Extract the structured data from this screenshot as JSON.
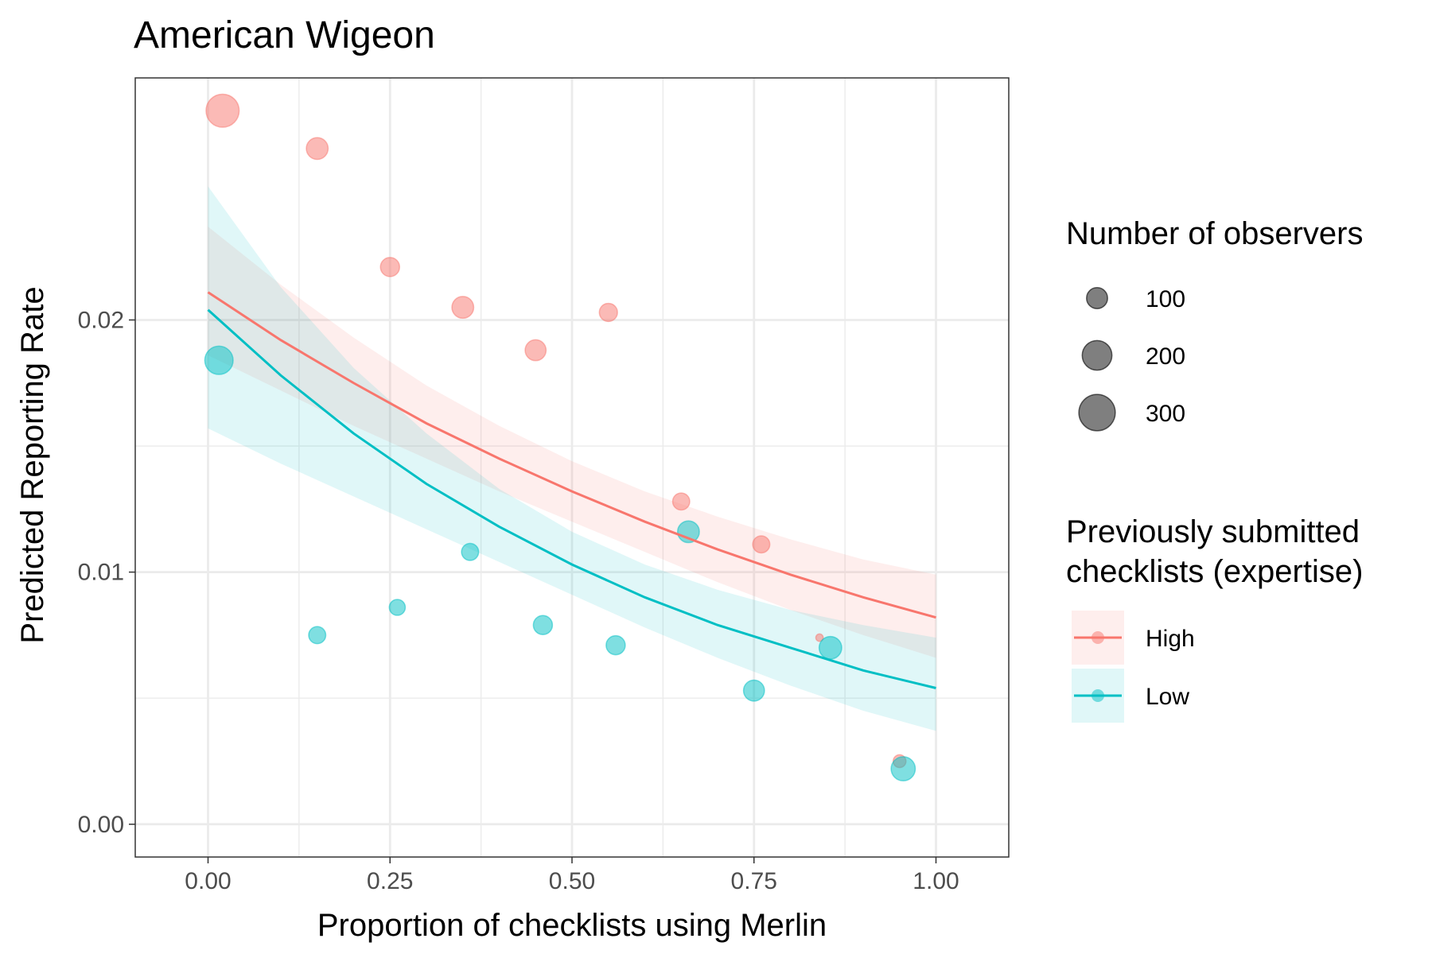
{
  "chart_data": {
    "type": "scatter",
    "title": "American Wigeon",
    "xlabel": "Proportion of checklists using Merlin",
    "ylabel": "Predicted Reporting Rate",
    "xlim": [
      -0.1,
      1.1
    ],
    "ylim": [
      -0.0013,
      0.0296
    ],
    "x_ticks": [
      0.0,
      0.25,
      0.5,
      0.75,
      1.0
    ],
    "x_tick_labels": [
      "0.00",
      "0.25",
      "0.50",
      "0.75",
      "1.00"
    ],
    "y_ticks": [
      0.0,
      0.01,
      0.02
    ],
    "y_tick_labels": [
      "0.00",
      "0.01",
      "0.02"
    ],
    "grid": true,
    "legend_position": "right",
    "size_legend": {
      "title": "Number of observers",
      "items": [
        {
          "label": "100",
          "value": 100
        },
        {
          "label": "200",
          "value": 200
        },
        {
          "label": "300",
          "value": 300
        }
      ]
    },
    "color_legend": {
      "title_lines": [
        "Previously submitted",
        "checklists (expertise)"
      ]
    },
    "series": [
      {
        "name": "High",
        "color": "#F8766D",
        "points": [
          {
            "x": 0.02,
            "y": 0.0283,
            "n": 300
          },
          {
            "x": 0.15,
            "y": 0.0268,
            "n": 130
          },
          {
            "x": 0.25,
            "y": 0.0221,
            "n": 100
          },
          {
            "x": 0.35,
            "y": 0.0205,
            "n": 130
          },
          {
            "x": 0.45,
            "y": 0.0188,
            "n": 120
          },
          {
            "x": 0.55,
            "y": 0.0203,
            "n": 90
          },
          {
            "x": 0.65,
            "y": 0.0128,
            "n": 80
          },
          {
            "x": 0.76,
            "y": 0.0111,
            "n": 80
          },
          {
            "x": 0.84,
            "y": 0.0074,
            "n": 15
          },
          {
            "x": 0.95,
            "y": 0.0025,
            "n": 45
          }
        ],
        "fit": {
          "x": [
            0.0,
            0.1,
            0.2,
            0.3,
            0.4,
            0.5,
            0.6,
            0.7,
            0.8,
            0.9,
            1.0
          ],
          "y": [
            0.0211,
            0.0192,
            0.0175,
            0.0159,
            0.0145,
            0.0132,
            0.012,
            0.0109,
            0.0099,
            0.009,
            0.0082
          ],
          "lower": [
            0.0186,
            0.0172,
            0.0158,
            0.0145,
            0.0132,
            0.012,
            0.0108,
            0.0096,
            0.0085,
            0.0075,
            0.0066
          ],
          "upper": [
            0.0237,
            0.0214,
            0.0193,
            0.0174,
            0.0158,
            0.0144,
            0.0132,
            0.0122,
            0.0113,
            0.0105,
            0.0099
          ]
        }
      },
      {
        "name": "Low",
        "color": "#00BFC4",
        "points": [
          {
            "x": 0.015,
            "y": 0.0184,
            "n": 220
          },
          {
            "x": 0.15,
            "y": 0.0075,
            "n": 80
          },
          {
            "x": 0.26,
            "y": 0.0086,
            "n": 70
          },
          {
            "x": 0.36,
            "y": 0.0108,
            "n": 80
          },
          {
            "x": 0.46,
            "y": 0.0079,
            "n": 100
          },
          {
            "x": 0.56,
            "y": 0.0071,
            "n": 100
          },
          {
            "x": 0.66,
            "y": 0.0116,
            "n": 130
          },
          {
            "x": 0.75,
            "y": 0.0053,
            "n": 120
          },
          {
            "x": 0.855,
            "y": 0.007,
            "n": 140
          },
          {
            "x": 0.955,
            "y": 0.0022,
            "n": 160
          }
        ],
        "fit": {
          "x": [
            0.0,
            0.1,
            0.2,
            0.3,
            0.4,
            0.5,
            0.6,
            0.7,
            0.8,
            0.9,
            1.0
          ],
          "y": [
            0.0204,
            0.0178,
            0.0155,
            0.0135,
            0.0118,
            0.0103,
            0.009,
            0.0079,
            0.007,
            0.0061,
            0.0054
          ],
          "lower": [
            0.0157,
            0.0143,
            0.013,
            0.0117,
            0.0104,
            0.0091,
            0.0078,
            0.0066,
            0.0055,
            0.0045,
            0.0037
          ],
          "upper": [
            0.0253,
            0.0213,
            0.0181,
            0.0155,
            0.0133,
            0.0116,
            0.0103,
            0.0093,
            0.0085,
            0.0079,
            0.0074
          ]
        }
      }
    ]
  }
}
